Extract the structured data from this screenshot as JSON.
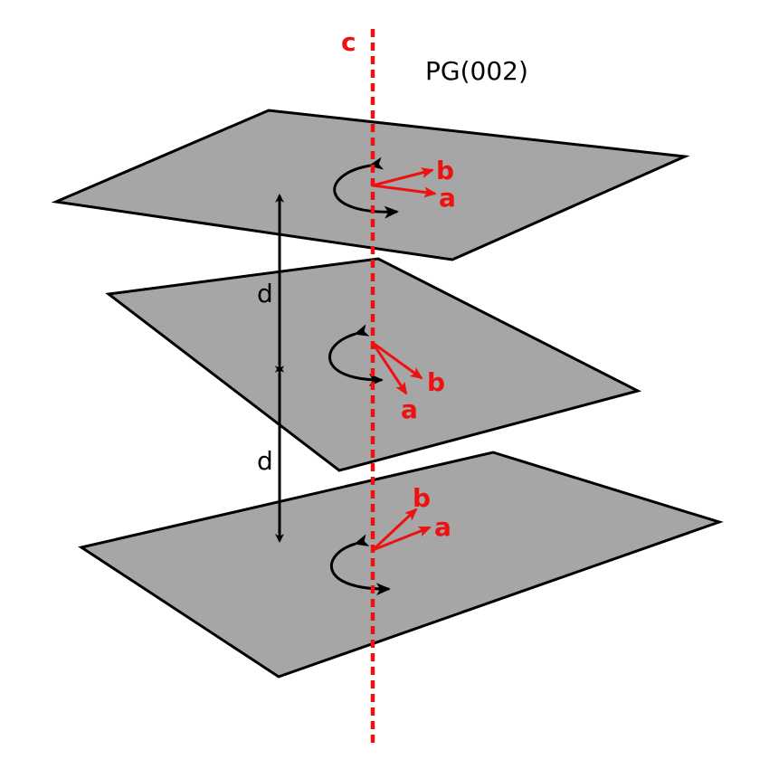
{
  "title": "PG(002)",
  "axis_label": "c",
  "spacing_label": "d",
  "vector_a_label": "a",
  "vector_b_label": "b",
  "colors": {
    "plane_fill": "#a6a6a6",
    "plane_stroke": "#000000",
    "axis": "#ee1111",
    "vectors": "#ee1111",
    "arrows": "#000000",
    "background": "#ffffff"
  },
  "planes": [
    {
      "name": "top-plane"
    },
    {
      "name": "middle-plane"
    },
    {
      "name": "bottom-plane"
    }
  ]
}
